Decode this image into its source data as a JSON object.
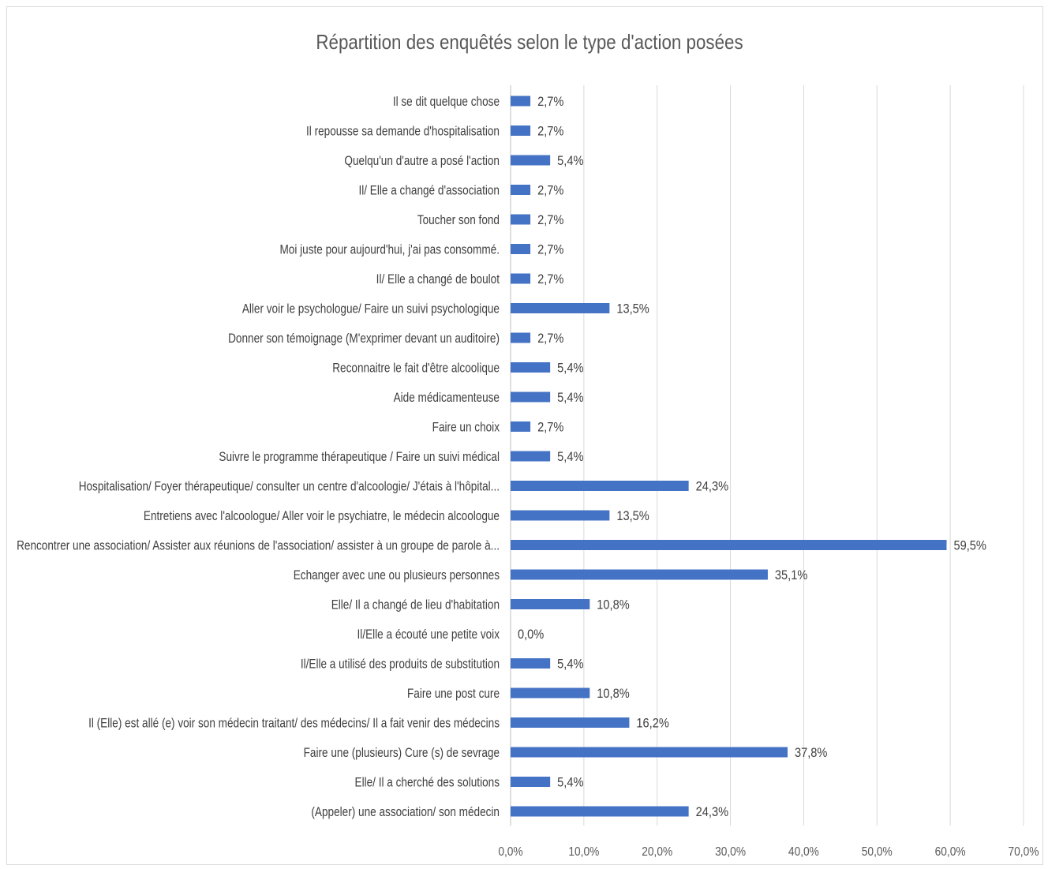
{
  "chart_data": {
    "type": "bar",
    "orientation": "horizontal",
    "title": "Répartition des enquêtés selon le type d'action posées",
    "xlabel": "",
    "ylabel": "",
    "xlim": [
      0,
      70
    ],
    "x_ticks": [
      "0,0%",
      "10,0%",
      "20,0%",
      "30,0%",
      "40,0%",
      "50,0%",
      "60,0%",
      "70,0%"
    ],
    "grid": true,
    "legend": "none",
    "bar_color": "#4472C4",
    "categories": [
      "Il se dit quelque chose",
      "Il repousse sa demande d'hospitalisation",
      "Quelqu'un d'autre a posé l'action",
      "Il/ Elle a changé d'association",
      "Toucher son fond",
      "Moi juste pour aujourd'hui, j'ai pas consommé.",
      "Il/ Elle a changé de boulot",
      "Aller voir le psychologue/ Faire un suivi psychologique",
      "Donner son témoignage (M'exprimer devant un auditoire)",
      "Reconnaitre le fait d'être alcoolique",
      "Aide médicamenteuse",
      "Faire un choix",
      "Suivre le programme thérapeutique / Faire un suivi médical",
      "Hospitalisation/ Foyer thérapeutique/ consulter un centre d'alcoologie/ J'étais à l'hôpital...",
      "Entretiens avec l'alcoologue/ Aller voir le psychiatre, le médecin alcoologue",
      "Rencontrer une association/ Assister aux réunions de l'association/ assister à un groupe de parole à...",
      "Echanger avec une ou plusieurs personnes",
      "Elle/ Il a changé de lieu d'habitation",
      "Il/Elle a écouté une petite voix",
      "Il/Elle a utilisé des produits de substitution",
      "Faire une post cure",
      "Il (Elle) est allé (e) voir son médecin traitant/ des médecins/ Il a fait venir des médecins",
      "Faire une (plusieurs) Cure (s) de sevrage",
      "Elle/ Il a cherché des solutions",
      "(Appeler) une association/ son médecin"
    ],
    "values": [
      2.7,
      2.7,
      5.4,
      2.7,
      2.7,
      2.7,
      2.7,
      13.5,
      2.7,
      5.4,
      5.4,
      2.7,
      5.4,
      24.3,
      13.5,
      59.5,
      35.1,
      10.8,
      0.0,
      5.4,
      10.8,
      16.2,
      37.8,
      5.4,
      24.3
    ],
    "data_labels": [
      "2,7%",
      "2,7%",
      "5,4%",
      "2,7%",
      "2,7%",
      "2,7%",
      "2,7%",
      "13,5%",
      "2,7%",
      "5,4%",
      "5,4%",
      "2,7%",
      "5,4%",
      "24,3%",
      "13,5%",
      "59,5%",
      "35,1%",
      "10,8%",
      "0,0%",
      "5,4%",
      "10,8%",
      "16,2%",
      "37,8%",
      "5,4%",
      "24,3%"
    ]
  }
}
